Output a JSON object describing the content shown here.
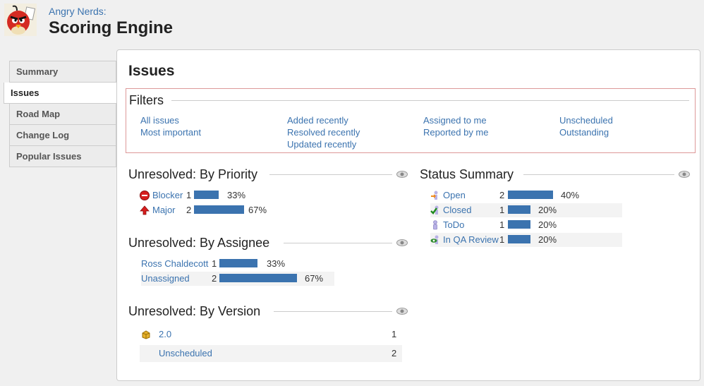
{
  "project": {
    "subtitle": "Angry Nerds:",
    "title": "Scoring Engine"
  },
  "nav": {
    "items": [
      {
        "label": "Summary",
        "active": false
      },
      {
        "label": "Issues",
        "active": true
      },
      {
        "label": "Road Map",
        "active": false
      },
      {
        "label": "Change Log",
        "active": false
      },
      {
        "label": "Popular Issues",
        "active": false
      }
    ]
  },
  "page_title": "Issues",
  "filters": {
    "heading": "Filters",
    "col1": [
      "All issues",
      "Most important"
    ],
    "col2": [
      "Added recently",
      "Resolved recently",
      "Updated recently"
    ],
    "col3": [
      "Assigned to me",
      "Reported by me"
    ],
    "col4": [
      "Unscheduled",
      "Outstanding"
    ]
  },
  "by_priority": {
    "heading": "Unresolved: By Priority",
    "rows": [
      {
        "label": "Blocker",
        "count": "1",
        "percent": "33%",
        "fraction": 0.33
      },
      {
        "label": "Major",
        "count": "2",
        "percent": "67%",
        "fraction": 0.67
      }
    ]
  },
  "by_assignee": {
    "heading": "Unresolved: By Assignee",
    "rows": [
      {
        "label": "Ross Chaldecott",
        "count": "1",
        "percent": "33%",
        "fraction": 0.33
      },
      {
        "label": "Unassigned",
        "count": "2",
        "percent": "67%",
        "fraction": 0.67
      }
    ]
  },
  "by_version": {
    "heading": "Unresolved: By Version",
    "rows": [
      {
        "label": "2.0",
        "count": "1"
      },
      {
        "label": "Unscheduled",
        "count": "2"
      }
    ]
  },
  "status_summary": {
    "heading": "Status Summary",
    "rows": [
      {
        "label": "Open",
        "count": "2",
        "percent": "40%",
        "fraction": 0.4,
        "icon": "open-status-icon"
      },
      {
        "label": "Closed",
        "count": "1",
        "percent": "20%",
        "fraction": 0.2,
        "icon": "closed-status-icon"
      },
      {
        "label": "ToDo",
        "count": "1",
        "percent": "20%",
        "fraction": 0.2,
        "icon": "todo-status-icon"
      },
      {
        "label": "In QA Review",
        "count": "1",
        "percent": "20%",
        "fraction": 0.2,
        "icon": "qa-review-status-icon"
      }
    ]
  },
  "colors": {
    "bar": "#3b73af",
    "link": "#3b73af",
    "filter_border": "#dd9999"
  }
}
